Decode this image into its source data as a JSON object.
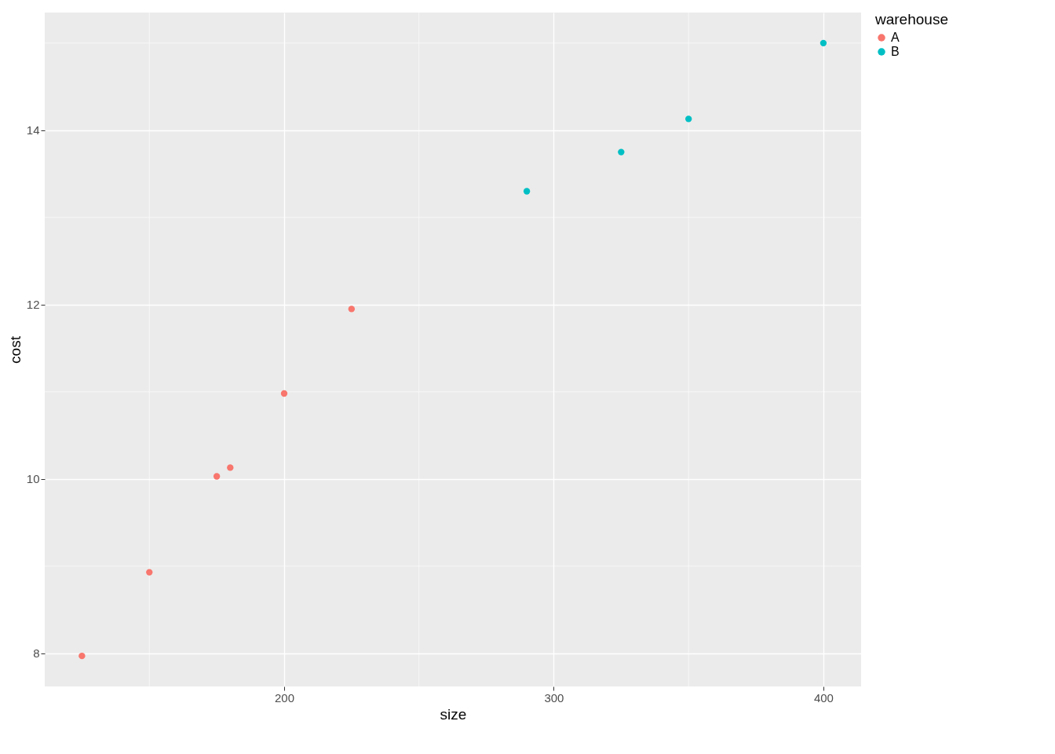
{
  "chart_data": {
    "type": "scatter",
    "xlabel": "size",
    "ylabel": "cost",
    "legend_title": "warehouse",
    "series": [
      {
        "name": "A",
        "color": "#f8766d",
        "x": [
          125,
          150,
          175,
          180,
          200,
          225
        ],
        "values": [
          7.97,
          8.93,
          10.03,
          10.13,
          10.98,
          11.95
        ]
      },
      {
        "name": "B",
        "color": "#00bfc4",
        "x": [
          290,
          325,
          350,
          400
        ],
        "values": [
          13.3,
          13.75,
          14.13,
          15.0
        ]
      }
    ],
    "xlim": [
      111.2,
      414.0
    ],
    "ylim": [
      7.62,
      15.35
    ],
    "xticks": [
      200,
      300,
      400
    ],
    "yticks": [
      8,
      10,
      12,
      14
    ],
    "grid": true,
    "legend": "right",
    "marker": "circle"
  }
}
